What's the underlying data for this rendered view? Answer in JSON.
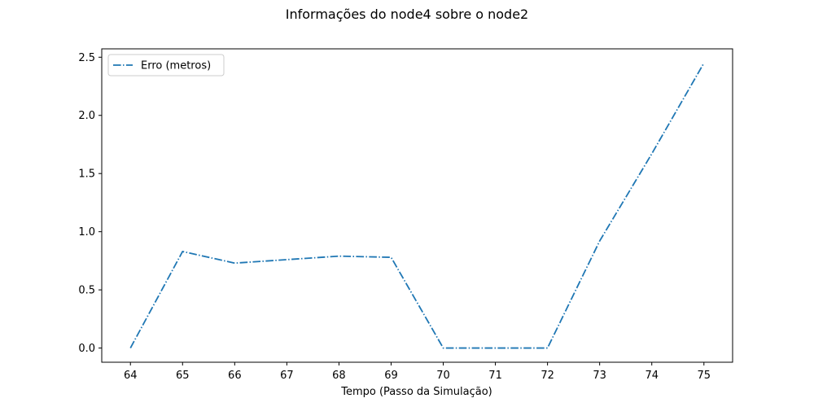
{
  "chart_data": {
    "type": "line",
    "title": "Informações do node4 sobre o node2",
    "xlabel": "Tempo (Passo da Simulação)",
    "ylabel": "",
    "xlim": [
      63.45,
      75.55
    ],
    "ylim": [
      -0.122,
      2.572
    ],
    "x_ticks": [
      64,
      65,
      66,
      67,
      68,
      69,
      70,
      71,
      72,
      73,
      74,
      75
    ],
    "y_ticks": [
      0.0,
      0.5,
      1.0,
      1.5,
      2.0,
      2.5
    ],
    "y_tick_labels": [
      "0.0",
      "0.5",
      "1.0",
      "1.5",
      "2.0",
      "2.5"
    ],
    "grid": false,
    "legend_position": "top-left",
    "series": [
      {
        "name": "Erro (metros)",
        "color": "#1f77b4",
        "line_style": "dashdot",
        "x": [
          64,
          65,
          66,
          67,
          68,
          69,
          70,
          71,
          72,
          73,
          74,
          75
        ],
        "y": [
          0.0,
          0.83,
          0.73,
          0.76,
          0.79,
          0.78,
          0.0,
          0.0,
          0.0,
          0.92,
          1.67,
          2.45
        ]
      }
    ]
  }
}
